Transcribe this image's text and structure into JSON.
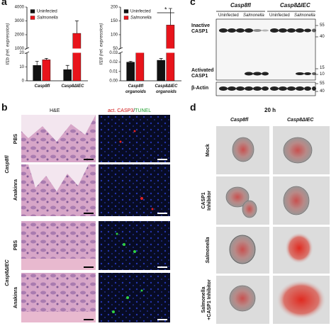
{
  "panel_labels": [
    "a",
    "b",
    "c",
    "d"
  ],
  "chart_data": [
    {
      "type": "bar",
      "ylabel": "Il1b (rel. expression)",
      "categories": [
        "Casp8fl",
        "Casp8ΔIEC"
      ],
      "series": [
        {
          "name": "Uninfected",
          "color": "#111111",
          "values": [
            11,
            8
          ],
          "errors": [
            3,
            3
          ]
        },
        {
          "name": "Salmonella",
          "color": "#e8141b",
          "values": [
            15,
            2100
          ],
          "errors": [
            1,
            900
          ]
        }
      ],
      "ylim": [
        0,
        4000
      ],
      "yticks": [
        0,
        10,
        20,
        1000,
        2000,
        3000,
        4000
      ],
      "y_break": [
        20,
        1000
      ],
      "legend": "upper left"
    },
    {
      "type": "bar",
      "ylabel": "Il18 (rel. expression)",
      "categories": [
        "Casp8fl organoids",
        "Casp8ΔIEC organoids"
      ],
      "series": [
        {
          "name": "Uninfected",
          "color": "#111111",
          "values": [
            0.02,
            0.022
          ],
          "errors": [
            0.001,
            0.002
          ]
        },
        {
          "name": "Salmonella",
          "color": "#e8141b",
          "values": [
            40,
            135
          ],
          "errors": [
            5,
            60
          ]
        }
      ],
      "ylim": [
        0,
        200
      ],
      "yticks": [
        {
          "value": 0,
          "label": "0.00"
        },
        0.01,
        0.02,
        0.03,
        50,
        100,
        150,
        200
      ],
      "y_break": [
        0.03,
        50
      ],
      "annotation": "*",
      "legend": "upper left"
    }
  ],
  "histology": {
    "columns": [
      "H&E",
      "act. CASP3",
      "/",
      "TUNEL"
    ],
    "groups": [
      {
        "label": "Casp8fl",
        "rows": [
          "PBS",
          "Anakinra"
        ]
      },
      {
        "label": "Casp8ΔIEC",
        "rows": [
          "PBS",
          "Anakinra"
        ]
      }
    ]
  },
  "blot": {
    "groups": [
      "Casp8fl",
      "Casp8ΔIEC"
    ],
    "lanes": [
      "Uninfected",
      "Salmonella",
      "Uninfected",
      "Salmonella"
    ],
    "rows": [
      "Inactive CASP1",
      "Activated CASP1",
      "β-Actin"
    ],
    "markers": [
      "55",
      "40",
      "15",
      "10",
      "55",
      "40"
    ]
  },
  "organoids": {
    "time": "20 h",
    "columns": [
      "Casp8fl",
      "Casp8ΔIEC"
    ],
    "rows": [
      "Mock",
      "CASP1 Inhibitor",
      "Salmonella",
      "Salmonella +CASP1 Inhibitor"
    ]
  }
}
